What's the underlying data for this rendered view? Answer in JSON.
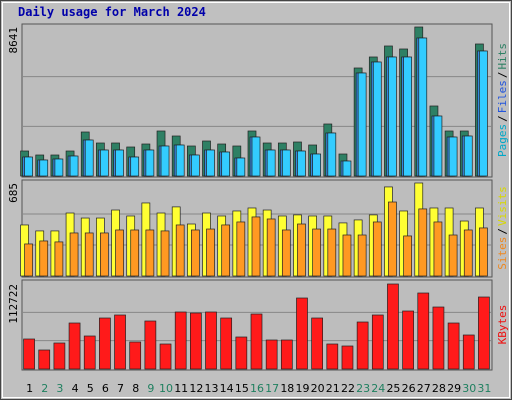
{
  "title": "Daily usage for March 2024",
  "chart_data": [
    {
      "type": "bar",
      "ylim": [
        0,
        8641
      ],
      "yticks": [
        8641
      ],
      "legend_separator": "/",
      "series": [
        {
          "name": "Pages",
          "color": "#33ccff",
          "label_color": "#00a8c8",
          "values": [
            1102,
            928,
            986,
            1160,
            2088,
            1508,
            1508,
            1102,
            1508,
            1740,
            1798,
            1218,
            1508,
            1392,
            1044,
            2262,
            1508,
            1508,
            1450,
            1276,
            2494,
            870,
            5974,
            6612,
            6902,
            6902,
            8004,
            3480,
            2262,
            2320,
            7250
          ]
        },
        {
          "name": "Files",
          "color": "#3388dd",
          "label_color": "#2255dd",
          "values": [
            1102,
            928,
            986,
            1160,
            2088,
            1508,
            1508,
            1102,
            1508,
            1740,
            1798,
            1218,
            1508,
            1392,
            1044,
            2262,
            1508,
            1508,
            1450,
            1276,
            2494,
            870,
            5974,
            6612,
            6902,
            6902,
            8004,
            3480,
            2262,
            2320,
            7250
          ]
        },
        {
          "name": "Hits",
          "color": "#2e8064",
          "label_color": "#2e8064",
          "values": [
            1450,
            1218,
            1218,
            1450,
            2552,
            1914,
            1914,
            1682,
            1856,
            2610,
            2320,
            1740,
            2030,
            1856,
            1740,
            2610,
            1914,
            1914,
            1972,
            1798,
            3016,
            1276,
            6264,
            6902,
            7540,
            7366,
            8641,
            4060,
            2610,
            2610,
            7656
          ]
        }
      ]
    },
    {
      "type": "bar",
      "ylim": [
        0,
        685
      ],
      "yticks": [
        685
      ],
      "legend_separator": "/",
      "series": [
        {
          "name": "Sites",
          "color": "#ff9922",
          "label_color": "#ee8820",
          "values": [
            236,
            258,
            251,
            317,
            317,
            317,
            339,
            339,
            339,
            332,
            376,
            339,
            346,
            376,
            398,
            435,
            420,
            339,
            383,
            346,
            346,
            302,
            302,
            398,
            545,
            295,
            494,
            398,
            302,
            339,
            354
          ]
        },
        {
          "name": "Visits",
          "color": "#ffff33",
          "label_color": "#d8d800",
          "values": [
            376,
            332,
            332,
            464,
            427,
            427,
            486,
            442,
            538,
            464,
            509,
            383,
            464,
            442,
            479,
            501,
            486,
            442,
            450,
            442,
            442,
            391,
            413,
            450,
            656,
            479,
            685,
            501,
            501,
            405,
            501
          ]
        }
      ]
    },
    {
      "type": "bar",
      "ylim": [
        0,
        112722
      ],
      "yticks": [
        112722
      ],
      "categories": [
        "1",
        "2",
        "3",
        "4",
        "5",
        "6",
        "7",
        "8",
        "9",
        "10",
        "11",
        "12",
        "13",
        "14",
        "15",
        "16",
        "17",
        "18",
        "19",
        "20",
        "21",
        "22",
        "23",
        "24",
        "25",
        "26",
        "27",
        "28",
        "29",
        "30",
        "31"
      ],
      "category_colors": [
        "#000000",
        "#208060",
        "#208060",
        "#000000",
        "#000000",
        "#000000",
        "#000000",
        "#000000",
        "#208060",
        "#208060",
        "#000000",
        "#000000",
        "#000000",
        "#000000",
        "#000000",
        "#208060",
        "#208060",
        "#000000",
        "#000000",
        "#000000",
        "#000000",
        "#000000",
        "#208060",
        "#208060",
        "#000000",
        "#000000",
        "#000000",
        "#000000",
        "#000000",
        "#208060",
        "#208060"
      ],
      "series": [
        {
          "name": "KBytes",
          "color": "#ff1a1a",
          "label_color": "#ee1111",
          "values": [
            39780,
            25194,
            34476,
            60996,
            43758,
            67626,
            71604,
            35802,
            63648,
            33150,
            75582,
            74256,
            75582,
            67626,
            42432,
            72930,
            38454,
            38454,
            94146,
            67626,
            33150,
            30498,
            62322,
            71604,
            112722,
            76908,
            100776,
            82212,
            60996,
            45084,
            95472
          ]
        }
      ]
    }
  ]
}
